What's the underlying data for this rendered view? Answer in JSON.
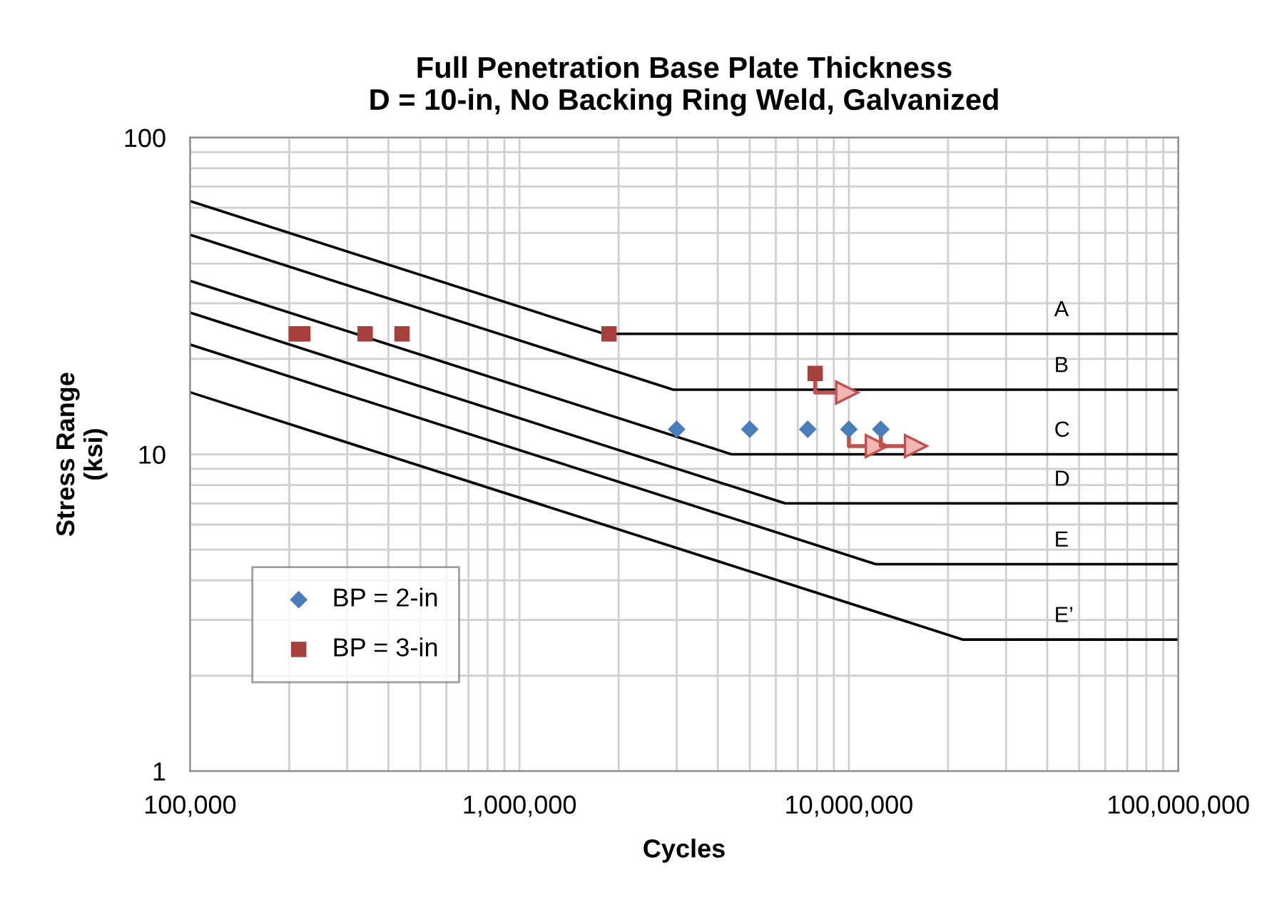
{
  "chart_data": {
    "type": "line",
    "title": "Full Penetration Base Plate Thickness\nD = 10-in, No Backing Ring Weld, Galvanized",
    "xlabel": "Cycles",
    "ylabel": "Stress Range\n(ksi)",
    "log": "xy",
    "grid": true,
    "legend": "bottom left",
    "marker": "none",
    "line_style": "solid",
    "xlim": [
      100000,
      100000000
    ],
    "ylim": [
      1,
      100
    ],
    "xticks": [
      {
        "value": 100000,
        "label": "100,000"
      },
      {
        "value": 1000000,
        "label": "1,000,000"
      },
      {
        "value": 10000000,
        "label": "10,000,000"
      },
      {
        "value": 100000000,
        "label": "100,000,000"
      }
    ],
    "yticks": [
      1,
      10,
      100
    ],
    "series": [
      {
        "name": "A",
        "color": "#000000",
        "x": [
          100000,
          1810000,
          100000000
        ],
        "values": [
          63,
          24,
          24
        ]
      },
      {
        "name": "B",
        "color": "#000000",
        "x": [
          100000,
          2930000,
          100000000
        ],
        "values": [
          49.3,
          16,
          16
        ]
      },
      {
        "name": "C",
        "color": "#000000",
        "x": [
          100000,
          4400000,
          100000000
        ],
        "values": [
          35.3,
          10,
          10
        ]
      },
      {
        "name": "D",
        "color": "#000000",
        "x": [
          100000,
          6410000,
          100000000
        ],
        "values": [
          28,
          7,
          7
        ]
      },
      {
        "name": "E",
        "color": "#000000",
        "x": [
          100000,
          12070000,
          100000000
        ],
        "values": [
          22.2,
          4.5,
          4.5
        ]
      },
      {
        "name": "E’",
        "color": "#000000",
        "x": [
          100000,
          22200000,
          100000000
        ],
        "values": [
          15.7,
          2.6,
          2.6
        ]
      },
      {
        "name": "BP = 2-in",
        "type": "scatter",
        "marker": "diamond",
        "color": "#4a7ebb",
        "x": [
          3000000,
          5000000,
          7500000,
          10000000,
          12500000
        ],
        "values": [
          12,
          12,
          12,
          12,
          12
        ]
      },
      {
        "name": "BP = 3-in",
        "type": "scatter",
        "marker": "square",
        "color": "#a5403d",
        "x": [
          210000,
          220000,
          340000,
          440000,
          1870000,
          7900000
        ],
        "values": [
          24,
          24,
          24,
          24,
          24,
          18
        ]
      }
    ]
  }
}
